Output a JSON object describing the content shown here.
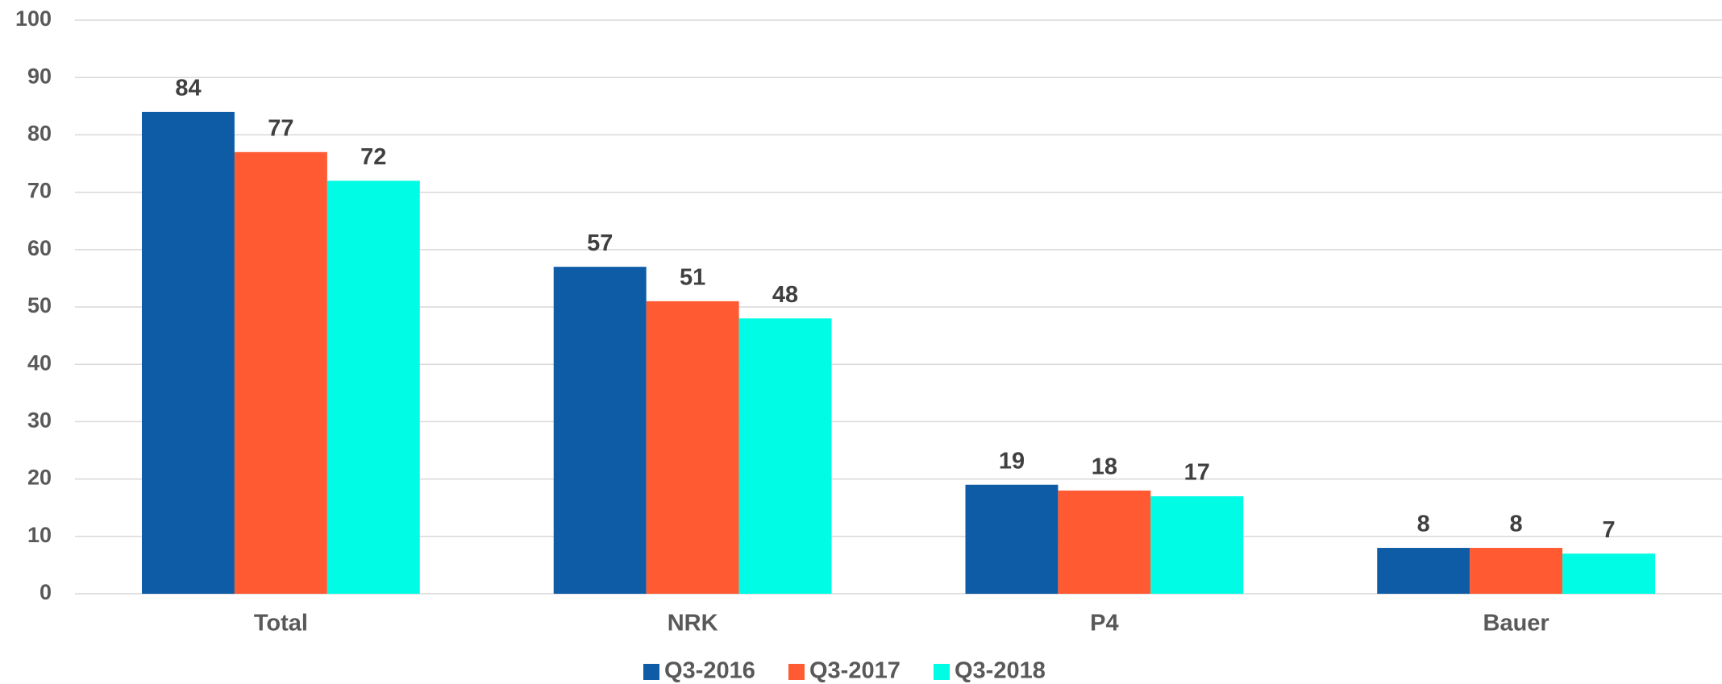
{
  "chart_data": {
    "type": "bar",
    "categories": [
      "Total",
      "NRK",
      "P4",
      "Bauer"
    ],
    "series": [
      {
        "name": "Q3-2016",
        "color": "#0e5ca6",
        "values": [
          84,
          57,
          19,
          8
        ]
      },
      {
        "name": "Q3-2017",
        "color": "#ff5a31",
        "values": [
          77,
          51,
          18,
          8
        ]
      },
      {
        "name": "Q3-2018",
        "color": "#00fce4",
        "values": [
          72,
          48,
          17,
          7
        ]
      }
    ],
    "ylim": [
      0,
      100
    ],
    "yticks": [
      0,
      10,
      20,
      30,
      40,
      50,
      60,
      70,
      80,
      90,
      100
    ],
    "grid": true,
    "legend": "bottom"
  }
}
